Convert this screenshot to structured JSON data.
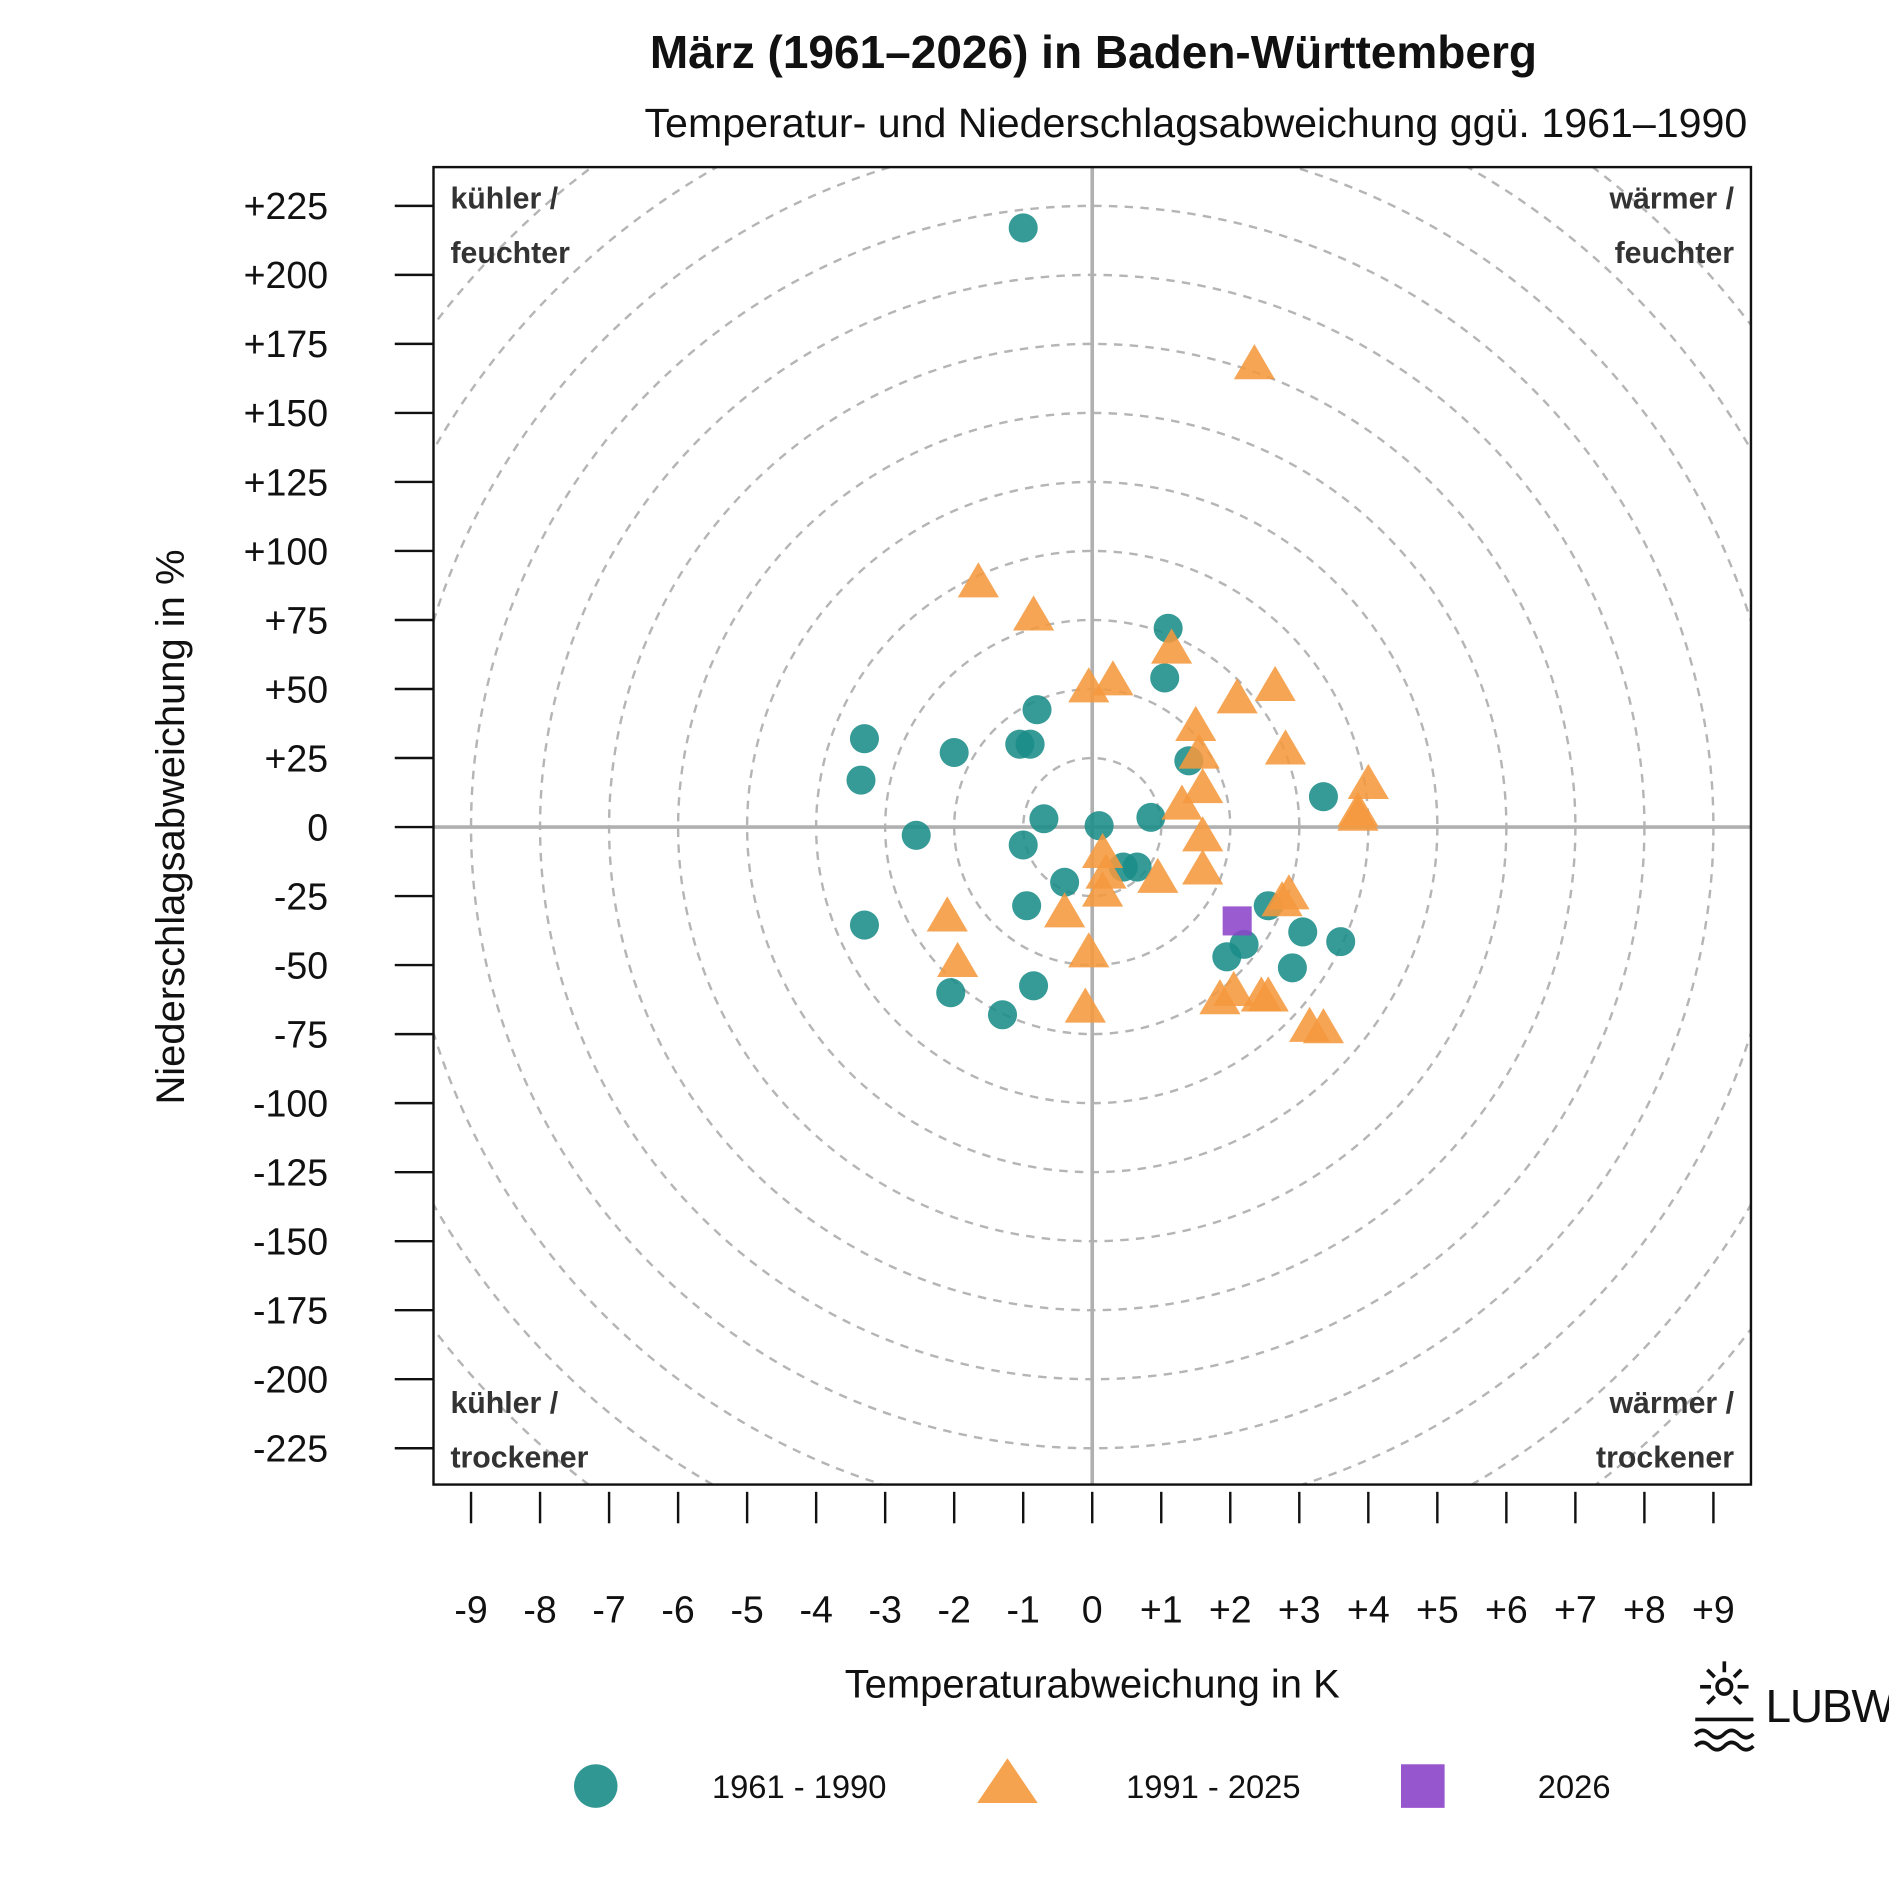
{
  "chart_data": {
    "type": "scatter",
    "title": "März (1961–2026) in Baden-Württemberg",
    "subtitle": "Temperatur- und Niederschlagsabweichung ggü. 1961–1990",
    "xlabel": "Temperaturabweichung in K",
    "ylabel": "Niederschlagsabweichung in %",
    "xlim": [
      -9.5,
      9.5
    ],
    "ylim": [
      -237.5,
      237.5
    ],
    "x_ticks": [
      "-9",
      "-8",
      "-7",
      "-6",
      "-5",
      "-4",
      "-3",
      "-2",
      "-1",
      "0",
      "+1",
      "+2",
      "+3",
      "+4",
      "+5",
      "+6",
      "+7",
      "+8",
      "+9"
    ],
    "y_ticks": [
      "+225",
      "+200",
      "+175",
      "+150",
      "+125",
      "+100",
      "+75",
      "+50",
      "+25",
      "0",
      "-25",
      "-50",
      "-75",
      "-100",
      "-125",
      "-150",
      "-175",
      "-200",
      "-225"
    ],
    "grid": "concentric dashed circles (1 K = 25 %)",
    "quadrant_labels": {
      "top_left": [
        "kühler /",
        "feuchter"
      ],
      "top_right": [
        "wärmer /",
        "feuchter"
      ],
      "bottom_left": [
        "kühler /",
        "trockener"
      ],
      "bottom_right": [
        "wärmer /",
        "trockener"
      ]
    },
    "legend_position": "bottom",
    "series": [
      {
        "name": "1961 - 1990",
        "marker": "circle",
        "color": "#1a8c87",
        "points": [
          [
            -1.0,
            217
          ],
          [
            1.1,
            72
          ],
          [
            1.05,
            54
          ],
          [
            -0.8,
            42.5
          ],
          [
            -1.05,
            30
          ],
          [
            -0.9,
            30
          ],
          [
            -3.3,
            32
          ],
          [
            -2.0,
            27
          ],
          [
            -3.35,
            17
          ],
          [
            1.4,
            24
          ],
          [
            3.35,
            11
          ],
          [
            -0.7,
            3
          ],
          [
            0.1,
            0.5
          ],
          [
            0.85,
            3.5
          ],
          [
            -2.55,
            -3
          ],
          [
            -1.0,
            -6.5
          ],
          [
            0.45,
            -14.5
          ],
          [
            0.65,
            -14.5
          ],
          [
            -0.4,
            -20
          ],
          [
            -0.95,
            -28.5
          ],
          [
            2.55,
            -28.5
          ],
          [
            -3.3,
            -35.5
          ],
          [
            3.05,
            -38
          ],
          [
            3.6,
            -41.5
          ],
          [
            2.2,
            -42.5
          ],
          [
            1.95,
            -47
          ],
          [
            2.9,
            -51
          ],
          [
            -2.05,
            -60
          ],
          [
            -0.85,
            -57.5
          ],
          [
            -1.3,
            -68
          ]
        ]
      },
      {
        "name": "1991 - 2025",
        "marker": "triangle",
        "color": "#f5993d",
        "points": [
          [
            2.35,
            167
          ],
          [
            -1.65,
            88
          ],
          [
            -0.85,
            76
          ],
          [
            -0.05,
            50
          ],
          [
            0.3,
            52.5
          ],
          [
            1.15,
            64
          ],
          [
            2.1,
            46
          ],
          [
            2.65,
            50.5
          ],
          [
            1.5,
            36
          ],
          [
            2.8,
            27.5
          ],
          [
            1.55,
            26
          ],
          [
            4.0,
            15
          ],
          [
            1.6,
            13.5
          ],
          [
            1.3,
            7.5
          ],
          [
            3.85,
            5
          ],
          [
            3.85,
            3.5
          ],
          [
            1.6,
            -4
          ],
          [
            0.15,
            -10
          ],
          [
            0.2,
            -17.5
          ],
          [
            1.6,
            -16
          ],
          [
            0.95,
            -19
          ],
          [
            0.15,
            -24
          ],
          [
            2.85,
            -25
          ],
          [
            2.75,
            -27.5
          ],
          [
            -0.4,
            -31.5
          ],
          [
            -2.1,
            -33
          ],
          [
            -0.05,
            -46
          ],
          [
            -1.95,
            -49.5
          ],
          [
            1.85,
            -63
          ],
          [
            2.05,
            -60
          ],
          [
            2.45,
            -62
          ],
          [
            2.55,
            -62
          ],
          [
            -0.1,
            -66
          ],
          [
            3.15,
            -73
          ],
          [
            3.35,
            -73.5
          ]
        ]
      },
      {
        "name": "2026",
        "marker": "square",
        "color": "#8b44c8",
        "points": [
          [
            2.1,
            -34
          ]
        ]
      }
    ]
  },
  "logo": {
    "text": "LUBW"
  }
}
